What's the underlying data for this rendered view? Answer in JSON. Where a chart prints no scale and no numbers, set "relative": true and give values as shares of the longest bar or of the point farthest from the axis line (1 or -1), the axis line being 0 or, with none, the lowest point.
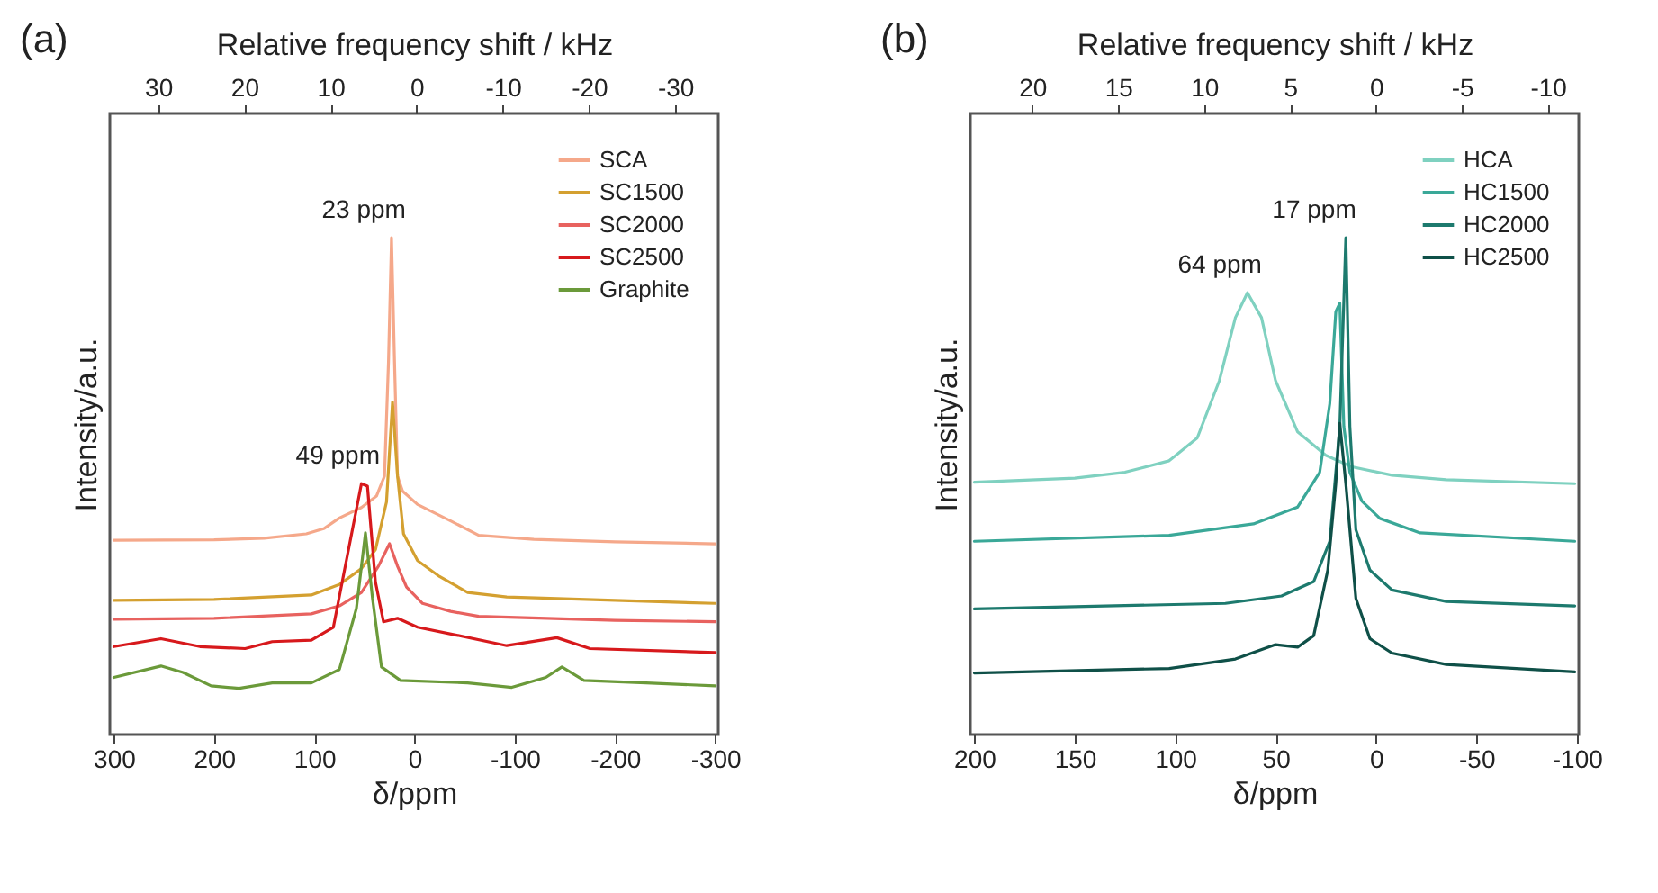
{
  "chart_data": [
    {
      "type": "line",
      "title": "(a)",
      "xlabel": "δ/ppm",
      "x2label": "Relative frequency shift / kHz",
      "ylabel": "Intensity/a.u.",
      "relative": true,
      "legend": "top right",
      "xlim": [
        304,
        -303
      ],
      "xticks": [
        300,
        200,
        100,
        0,
        -100,
        -200,
        -300
      ],
      "x2lim": [
        35.6,
        -35
      ],
      "x2ticks": [
        30,
        20,
        10,
        0,
        -10,
        -20,
        -30
      ],
      "annotations": [
        {
          "text": "23 ppm",
          "x": 23,
          "y": 1.0
        },
        {
          "text": "49 ppm",
          "x": 49,
          "y": 0.505
        }
      ],
      "series": [
        {
          "name": "SCA",
          "color": "#f5a88a",
          "x": [
            300,
            200,
            150,
            108,
            90,
            75,
            53,
            38,
            30,
            26,
            23,
            20,
            17,
            12,
            -3,
            -36,
            -64,
            -119,
            -200,
            -300
          ],
          "values": [
            0.391,
            0.392,
            0.395,
            0.404,
            0.415,
            0.436,
            0.457,
            0.48,
            0.52,
            0.75,
            1.0,
            0.75,
            0.52,
            0.49,
            0.463,
            0.43,
            0.401,
            0.393,
            0.388,
            0.384
          ]
        },
        {
          "name": "SC1500",
          "color": "#d4a030",
          "x": [
            300,
            200,
            103,
            75,
            53,
            39,
            28,
            22,
            17,
            11,
            -3,
            -25,
            -53,
            -92,
            -200,
            -300
          ],
          "values": [
            0.27,
            0.272,
            0.281,
            0.302,
            0.334,
            0.372,
            0.468,
            0.669,
            0.521,
            0.404,
            0.35,
            0.318,
            0.286,
            0.277,
            0.27,
            0.264
          ]
        },
        {
          "name": "SC2000",
          "color": "#e8625f",
          "x": [
            300,
            200,
            103,
            75,
            53,
            36,
            25,
            17,
            8,
            -8,
            -36,
            -64,
            -200,
            -300
          ],
          "values": [
            0.232,
            0.234,
            0.243,
            0.259,
            0.286,
            0.339,
            0.384,
            0.339,
            0.297,
            0.264,
            0.248,
            0.238,
            0.23,
            0.227
          ]
        },
        {
          "name": "SC2500",
          "color": "#d7191c",
          "x": [
            300,
            253,
            214,
            169,
            142,
            103,
            81,
            67,
            53,
            47,
            39,
            31,
            17,
            -3,
            -42,
            -92,
            -142,
            -175,
            -300
          ],
          "values": [
            0.177,
            0.193,
            0.177,
            0.173,
            0.187,
            0.19,
            0.216,
            0.361,
            0.505,
            0.5,
            0.307,
            0.227,
            0.234,
            0.216,
            0.2,
            0.179,
            0.195,
            0.173,
            0.165
          ]
        },
        {
          "name": "Graphite",
          "color": "#6b9a3a",
          "x": [
            300,
            253,
            231,
            203,
            175,
            142,
            103,
            75,
            58,
            49,
            42,
            33,
            14,
            -53,
            -97,
            -131,
            -147,
            -169,
            -231,
            -300
          ],
          "values": [
            0.115,
            0.138,
            0.125,
            0.098,
            0.093,
            0.104,
            0.104,
            0.131,
            0.254,
            0.406,
            0.275,
            0.136,
            0.109,
            0.104,
            0.095,
            0.115,
            0.136,
            0.109,
            0.104,
            0.098
          ]
        }
      ]
    },
    {
      "type": "line",
      "title": "(b)",
      "xlabel": "δ/ppm",
      "x2label": "Relative frequency shift / kHz",
      "ylabel": "Intensity/a.u.",
      "relative": true,
      "legend": "top right",
      "xlim": [
        202,
        -101
      ],
      "xticks": [
        200,
        150,
        100,
        50,
        0,
        -50,
        -100
      ],
      "x2lim": [
        23.6,
        -11.8
      ],
      "x2ticks": [
        20,
        15,
        10,
        5,
        0,
        -5,
        -10
      ],
      "annotations": [
        {
          "text": "64 ppm",
          "x": 64,
          "y": 0.889
        },
        {
          "text": "17 ppm",
          "x": 17,
          "y": 1.0
        }
      ],
      "series": [
        {
          "name": "HCA",
          "color": "#7fd1c0",
          "x": [
            200,
            150,
            125,
            103,
            89,
            78,
            70,
            64,
            57,
            50,
            39,
            25,
            12,
            -8,
            -35,
            -99
          ],
          "values": [
            0.508,
            0.516,
            0.528,
            0.551,
            0.597,
            0.712,
            0.839,
            0.889,
            0.839,
            0.712,
            0.609,
            0.562,
            0.539,
            0.522,
            0.513,
            0.505
          ]
        },
        {
          "name": "HC1500",
          "color": "#3aa898",
          "x": [
            200,
            103,
            61,
            39,
            28,
            23,
            20,
            18,
            16,
            13,
            7,
            -2,
            -22,
            -99
          ],
          "values": [
            0.389,
            0.401,
            0.424,
            0.458,
            0.528,
            0.666,
            0.851,
            0.868,
            0.62,
            0.528,
            0.47,
            0.435,
            0.406,
            0.389
          ]
        },
        {
          "name": "HC2000",
          "color": "#1d7a6e",
          "x": [
            200,
            75,
            47,
            31,
            23,
            18,
            15,
            13,
            10,
            3,
            -8,
            -35,
            -99
          ],
          "values": [
            0.253,
            0.264,
            0.279,
            0.308,
            0.389,
            0.62,
            1.0,
            0.62,
            0.412,
            0.331,
            0.291,
            0.268,
            0.259
          ]
        },
        {
          "name": "HC2500",
          "color": "#0f5048",
          "x": [
            200,
            103,
            70,
            50,
            39,
            31,
            24,
            20,
            18,
            15,
            10,
            3,
            -8,
            -35,
            -99
          ],
          "values": [
            0.124,
            0.133,
            0.152,
            0.181,
            0.176,
            0.199,
            0.331,
            0.505,
            0.626,
            0.505,
            0.274,
            0.193,
            0.164,
            0.141,
            0.126
          ]
        }
      ]
    }
  ]
}
